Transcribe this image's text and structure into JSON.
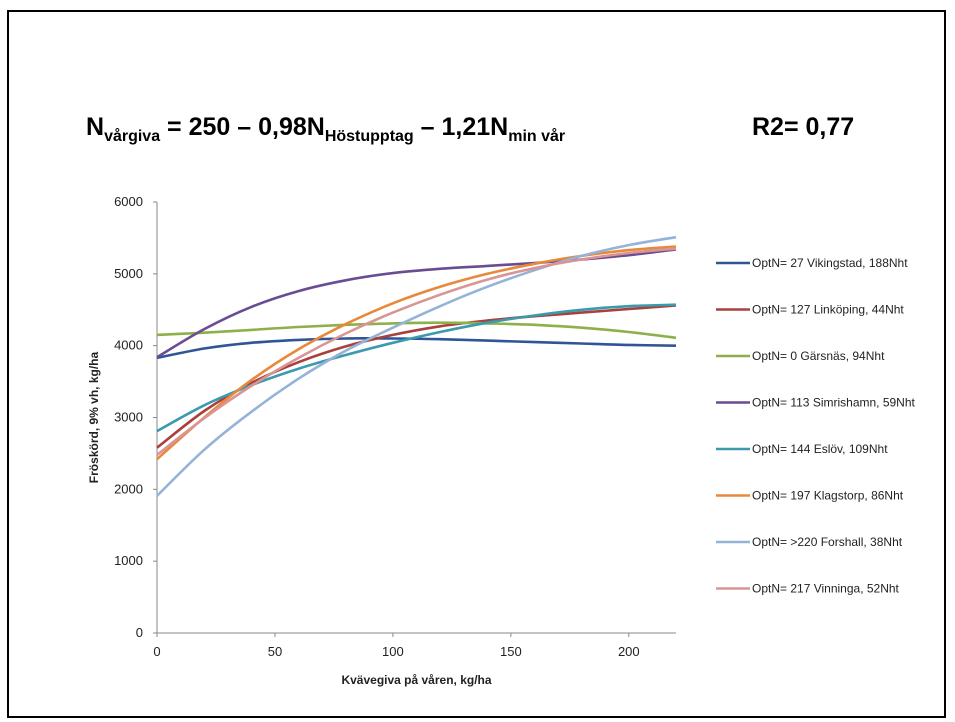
{
  "equation": {
    "n1": "N",
    "sub1": "vårgiva",
    "eq": " = 250 – 0,98N",
    "sub2": "Höstupptag",
    "mid": " – 1,21N",
    "sub3": "min vår",
    "r2": "R2= 0,77"
  },
  "chart_data": {
    "type": "line",
    "xlabel": "Kvävegiva på våren, kg/ha",
    "ylabel": "Fröskörd, 9% vh, kg/ha",
    "xlim": [
      0,
      220
    ],
    "ylim": [
      0,
      6000
    ],
    "xticks": [
      0,
      50,
      100,
      150,
      200
    ],
    "yticks": [
      0,
      1000,
      2000,
      3000,
      4000,
      5000,
      6000
    ],
    "grid": false,
    "legend_position": "right",
    "x": [
      0,
      20,
      40,
      60,
      80,
      100,
      120,
      140,
      160,
      180,
      200,
      220
    ],
    "series": [
      {
        "name": "OptN= 27 Vikingstad, 188Nht",
        "color": "#2f5597",
        "values": [
          3830,
          3960,
          4040,
          4080,
          4100,
          4100,
          4090,
          4070,
          4050,
          4030,
          4010,
          4000
        ]
      },
      {
        "name": "OptN= 127 Linköping, 44Nht",
        "color": "#a9403e",
        "values": [
          2580,
          3090,
          3480,
          3770,
          3990,
          4150,
          4270,
          4350,
          4410,
          4460,
          4510,
          4560
        ]
      },
      {
        "name": "OptN= 0 Gärsnäs, 94Nht",
        "color": "#8db04a",
        "values": [
          4150,
          4180,
          4220,
          4260,
          4290,
          4310,
          4320,
          4310,
          4290,
          4250,
          4190,
          4110
        ]
      },
      {
        "name": "OptN= 113 Simrishamn, 59Nht",
        "color": "#6a4c93",
        "values": [
          3840,
          4230,
          4540,
          4760,
          4910,
          5010,
          5070,
          5110,
          5150,
          5200,
          5260,
          5340
        ]
      },
      {
        "name": "OptN= 144 Eslöv, 109Nht",
        "color": "#3a9aae",
        "values": [
          2810,
          3170,
          3450,
          3680,
          3870,
          4040,
          4190,
          4320,
          4420,
          4500,
          4550,
          4570
        ]
      },
      {
        "name": "OptN= 197 Klagstorp, 86Nht",
        "color": "#e9883a",
        "values": [
          2420,
          3000,
          3520,
          3950,
          4300,
          4590,
          4820,
          5000,
          5140,
          5250,
          5330,
          5380
        ]
      },
      {
        "name": "OptN= >220 Forshall, 38Nht",
        "color": "#95b3d7",
        "values": [
          1910,
          2550,
          3080,
          3540,
          3930,
          4250,
          4550,
          4820,
          5050,
          5250,
          5400,
          5510
        ]
      },
      {
        "name": "OptN= 217 Vinninga, 52Nht",
        "color": "#d99594",
        "values": [
          2480,
          2990,
          3440,
          3830,
          4170,
          4460,
          4710,
          4920,
          5080,
          5200,
          5290,
          5350
        ]
      }
    ]
  }
}
